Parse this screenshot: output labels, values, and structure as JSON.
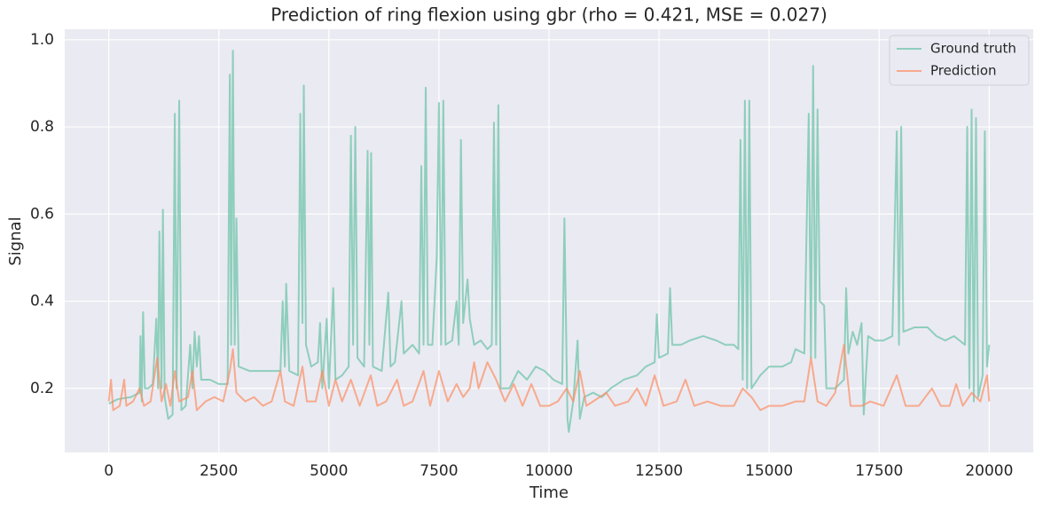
{
  "chart_data": {
    "type": "line",
    "title": "Prediction of ring flexion using gbr (rho = 0.421, MSE = 0.027)",
    "x_label": "Time",
    "y_label": "Signal",
    "xlim": [
      -1000,
      21000
    ],
    "ylim": [
      0.053,
      1.024
    ],
    "xticks": [
      0,
      2500,
      5000,
      7500,
      10000,
      12500,
      15000,
      17500,
      20000
    ],
    "yticks": [
      0.2,
      0.4,
      0.6,
      0.8,
      {
        "value": 1,
        "label": "1.0"
      }
    ],
    "grid": true,
    "legend": "upper right",
    "series": [
      {
        "name": "Ground truth",
        "color": "#66c2a5",
        "x": [
          0,
          200,
          500,
          700,
          720,
          750,
          780,
          820,
          900,
          1000,
          1080,
          1120,
          1150,
          1200,
          1230,
          1270,
          1350,
          1450,
          1500,
          1540,
          1600,
          1650,
          1750,
          1850,
          1900,
          1950,
          2000,
          2050,
          2100,
          2300,
          2500,
          2700,
          2750,
          2780,
          2820,
          2860,
          2900,
          2950,
          3200,
          3600,
          3900,
          3950,
          4000,
          4030,
          4100,
          4300,
          4350,
          4400,
          4430,
          4480,
          4600,
          4750,
          4800,
          4850,
          4950,
          5000,
          5100,
          5150,
          5300,
          5450,
          5500,
          5550,
          5600,
          5650,
          5800,
          5880,
          5920,
          5960,
          6000,
          6200,
          6350,
          6400,
          6500,
          6650,
          6700,
          6900,
          7050,
          7100,
          7150,
          7200,
          7250,
          7350,
          7450,
          7500,
          7550,
          7600,
          7650,
          7800,
          7900,
          7950,
          8000,
          8050,
          8150,
          8200,
          8300,
          8450,
          8600,
          8700,
          8750,
          8800,
          8850,
          8900,
          9100,
          9300,
          9500,
          9700,
          9900,
          10100,
          10300,
          10350,
          10420,
          10450,
          10550,
          10650,
          10700,
          10800,
          11000,
          11200,
          11400,
          11700,
          12000,
          12200,
          12400,
          12450,
          12500,
          12700,
          12750,
          12800,
          13000,
          13200,
          13500,
          13800,
          14000,
          14200,
          14300,
          14350,
          14400,
          14450,
          14500,
          14550,
          14600,
          14800,
          15000,
          15300,
          15500,
          15600,
          15800,
          15900,
          15950,
          16000,
          16050,
          16100,
          16150,
          16250,
          16300,
          16500,
          16700,
          16750,
          16800,
          16900,
          17000,
          17100,
          17150,
          17250,
          17400,
          17600,
          17800,
          17900,
          17950,
          18000,
          18050,
          18300,
          18600,
          18800,
          19000,
          19200,
          19450,
          19500,
          19550,
          19600,
          19650,
          19700,
          19750,
          19850,
          19900,
          19950,
          20000
        ],
        "values": [
          0.165,
          0.175,
          0.18,
          0.19,
          0.32,
          0.17,
          0.375,
          0.2,
          0.2,
          0.21,
          0.36,
          0.2,
          0.56,
          0.2,
          0.61,
          0.18,
          0.13,
          0.14,
          0.83,
          0.2,
          0.86,
          0.15,
          0.16,
          0.3,
          0.2,
          0.33,
          0.25,
          0.32,
          0.22,
          0.22,
          0.21,
          0.21,
          0.92,
          0.3,
          0.975,
          0.3,
          0.59,
          0.25,
          0.24,
          0.24,
          0.24,
          0.4,
          0.25,
          0.44,
          0.24,
          0.23,
          0.83,
          0.35,
          0.895,
          0.3,
          0.25,
          0.26,
          0.35,
          0.2,
          0.36,
          0.2,
          0.43,
          0.22,
          0.23,
          0.25,
          0.78,
          0.3,
          0.8,
          0.27,
          0.25,
          0.745,
          0.3,
          0.74,
          0.25,
          0.24,
          0.42,
          0.25,
          0.26,
          0.4,
          0.28,
          0.3,
          0.28,
          0.71,
          0.3,
          0.89,
          0.3,
          0.3,
          0.5,
          0.855,
          0.3,
          0.86,
          0.3,
          0.31,
          0.4,
          0.3,
          0.77,
          0.35,
          0.45,
          0.36,
          0.3,
          0.31,
          0.29,
          0.3,
          0.81,
          0.3,
          0.85,
          0.2,
          0.2,
          0.24,
          0.22,
          0.25,
          0.24,
          0.22,
          0.21,
          0.59,
          0.13,
          0.1,
          0.17,
          0.31,
          0.13,
          0.18,
          0.19,
          0.18,
          0.2,
          0.22,
          0.23,
          0.25,
          0.26,
          0.37,
          0.27,
          0.28,
          0.43,
          0.3,
          0.3,
          0.31,
          0.32,
          0.31,
          0.3,
          0.3,
          0.29,
          0.77,
          0.22,
          0.86,
          0.2,
          0.86,
          0.2,
          0.23,
          0.25,
          0.25,
          0.26,
          0.29,
          0.28,
          0.83,
          0.27,
          0.94,
          0.27,
          0.84,
          0.4,
          0.39,
          0.2,
          0.2,
          0.22,
          0.43,
          0.28,
          0.33,
          0.3,
          0.35,
          0.14,
          0.32,
          0.31,
          0.31,
          0.32,
          0.79,
          0.3,
          0.8,
          0.33,
          0.34,
          0.34,
          0.32,
          0.31,
          0.32,
          0.3,
          0.8,
          0.2,
          0.84,
          0.17,
          0.82,
          0.18,
          0.23,
          0.79,
          0.25,
          0.3
        ]
      },
      {
        "name": "Prediction",
        "color": "#fc8d62",
        "x": [
          0,
          50,
          100,
          250,
          350,
          400,
          550,
          700,
          800,
          950,
          1100,
          1200,
          1300,
          1400,
          1500,
          1600,
          1800,
          1900,
          2000,
          2200,
          2400,
          2600,
          2750,
          2820,
          2900,
          3100,
          3300,
          3500,
          3700,
          3900,
          4000,
          4200,
          4400,
          4500,
          4700,
          4850,
          5000,
          5150,
          5300,
          5500,
          5700,
          5950,
          6100,
          6300,
          6550,
          6700,
          6900,
          7150,
          7300,
          7500,
          7700,
          7900,
          8050,
          8200,
          8300,
          8400,
          8600,
          8800,
          9000,
          9200,
          9400,
          9600,
          9800,
          10000,
          10200,
          10400,
          10550,
          10700,
          10850,
          11000,
          11300,
          11500,
          11800,
          12000,
          12200,
          12400,
          12600,
          12900,
          13100,
          13300,
          13600,
          13900,
          14200,
          14400,
          14600,
          14800,
          15000,
          15300,
          15600,
          15800,
          15950,
          16100,
          16300,
          16500,
          16700,
          16850,
          17100,
          17300,
          17600,
          17900,
          18100,
          18400,
          18700,
          18900,
          19100,
          19250,
          19400,
          19600,
          19800,
          19950,
          20000
        ],
        "values": [
          0.17,
          0.22,
          0.15,
          0.16,
          0.22,
          0.16,
          0.17,
          0.2,
          0.16,
          0.17,
          0.27,
          0.17,
          0.21,
          0.16,
          0.24,
          0.17,
          0.18,
          0.24,
          0.15,
          0.17,
          0.18,
          0.17,
          0.24,
          0.29,
          0.19,
          0.17,
          0.18,
          0.16,
          0.17,
          0.24,
          0.17,
          0.16,
          0.25,
          0.17,
          0.17,
          0.24,
          0.16,
          0.22,
          0.17,
          0.22,
          0.16,
          0.23,
          0.16,
          0.17,
          0.22,
          0.16,
          0.17,
          0.24,
          0.16,
          0.24,
          0.17,
          0.21,
          0.18,
          0.2,
          0.26,
          0.2,
          0.26,
          0.22,
          0.17,
          0.21,
          0.16,
          0.21,
          0.16,
          0.16,
          0.17,
          0.2,
          0.17,
          0.24,
          0.16,
          0.17,
          0.19,
          0.16,
          0.17,
          0.2,
          0.16,
          0.23,
          0.16,
          0.17,
          0.22,
          0.16,
          0.17,
          0.16,
          0.16,
          0.2,
          0.18,
          0.15,
          0.16,
          0.16,
          0.17,
          0.17,
          0.27,
          0.17,
          0.16,
          0.19,
          0.3,
          0.16,
          0.16,
          0.17,
          0.16,
          0.23,
          0.16,
          0.16,
          0.2,
          0.16,
          0.16,
          0.21,
          0.16,
          0.19,
          0.17,
          0.23,
          0.17
        ]
      }
    ]
  }
}
